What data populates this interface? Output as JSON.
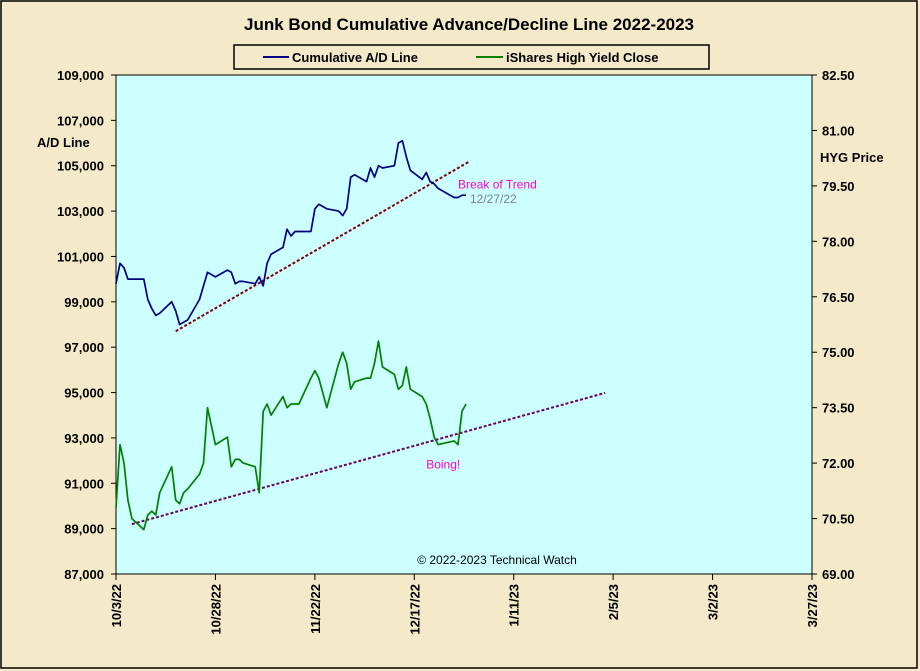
{
  "chart_data": {
    "type": "line",
    "title": "Junk Bond Cumulative  Advance/Decline Line 2022-2023",
    "y_left_label": "A/D Line",
    "y_right_label": "HYG Price",
    "copyright": "© 2022-2023  Technical  Watch",
    "colors": {
      "page_bg": "#F4E9C8",
      "plot_bg": "#CCFFFF",
      "ad_line": "#000080",
      "hyg_line": "#008000",
      "trend_line": "#800000",
      "trend_line_hyg": "#660066",
      "annotation_pink": "#FF00CC",
      "annotation_gray": "#808080"
    },
    "x_axis": {
      "start": "2022-10-03",
      "end": "2023-03-27",
      "tick_labels": [
        "10/3/22",
        "10/28/22",
        "11/22/22",
        "12/17/22",
        "1/11/23",
        "2/5/23",
        "3/2/23",
        "3/27/23"
      ],
      "tick_dates": [
        "2022-10-03",
        "2022-10-28",
        "2022-11-22",
        "2022-12-17",
        "2023-01-11",
        "2023-02-05",
        "2023-03-02",
        "2023-03-27"
      ]
    },
    "y_left": {
      "min": 87000,
      "max": 109000,
      "tick_values": [
        87000,
        89000,
        91000,
        93000,
        95000,
        97000,
        99000,
        101000,
        103000,
        105000,
        107000,
        109000
      ],
      "tick_labels": [
        "87,000",
        "89,000",
        "91,000",
        "93,000",
        "95,000",
        "97,000",
        "99,000",
        "101,000",
        "103,000",
        "105,000",
        "107,000",
        "109,000"
      ]
    },
    "y_right": {
      "min": 69.0,
      "max": 82.5,
      "tick_values": [
        69.0,
        70.5,
        72.0,
        73.5,
        75.0,
        76.5,
        78.0,
        79.5,
        81.0,
        82.5
      ],
      "tick_labels": [
        "69.00",
        "70.50",
        "72.00",
        "73.50",
        "75.00",
        "76.50",
        "78.00",
        "79.50",
        "81.00",
        "82.50"
      ]
    },
    "legend": {
      "position": "top-center",
      "items": [
        "Cumulative A/D Line",
        "iShares High Yield Close"
      ]
    },
    "series": [
      {
        "name": "Cumulative A/D Line",
        "axis": "left",
        "x": [
          "2022-10-03",
          "2022-10-04",
          "2022-10-05",
          "2022-10-06",
          "2022-10-07",
          "2022-10-10",
          "2022-10-11",
          "2022-10-12",
          "2022-10-13",
          "2022-10-14",
          "2022-10-17",
          "2022-10-18",
          "2022-10-19",
          "2022-10-20",
          "2022-10-21",
          "2022-10-24",
          "2022-10-25",
          "2022-10-26",
          "2022-10-27",
          "2022-10-28",
          "2022-10-31",
          "2022-11-01",
          "2022-11-02",
          "2022-11-03",
          "2022-11-04",
          "2022-11-07",
          "2022-11-08",
          "2022-11-09",
          "2022-11-10",
          "2022-11-11",
          "2022-11-14",
          "2022-11-15",
          "2022-11-16",
          "2022-11-17",
          "2022-11-18",
          "2022-11-21",
          "2022-11-22",
          "2022-11-23",
          "2022-11-25",
          "2022-11-28",
          "2022-11-29",
          "2022-11-30",
          "2022-12-01",
          "2022-12-02",
          "2022-12-05",
          "2022-12-06",
          "2022-12-07",
          "2022-12-08",
          "2022-12-09",
          "2022-12-12",
          "2022-12-13",
          "2022-12-14",
          "2022-12-15",
          "2022-12-16",
          "2022-12-19",
          "2022-12-20",
          "2022-12-21",
          "2022-12-22",
          "2022-12-23",
          "2022-12-27",
          "2022-12-28",
          "2022-12-29",
          "2022-12-30"
        ],
        "values": [
          99800,
          100700,
          100500,
          100000,
          100000,
          100000,
          99100,
          98700,
          98400,
          98500,
          99000,
          98600,
          98000,
          98100,
          98200,
          99100,
          99700,
          100300,
          100200,
          100100,
          100400,
          100300,
          99800,
          99900,
          99900,
          99800,
          100100,
          99700,
          100700,
          101100,
          101400,
          102200,
          101900,
          102100,
          102100,
          102100,
          103100,
          103300,
          103100,
          103000,
          102800,
          103100,
          104500,
          104600,
          104300,
          104900,
          104500,
          105000,
          104900,
          105000,
          106000,
          106100,
          105400,
          104800,
          104400,
          104700,
          104300,
          104200,
          104000,
          103600,
          103600,
          103700,
          103700
        ]
      },
      {
        "name": "iShares High Yield Close",
        "axis": "right",
        "x": [
          "2022-10-03",
          "2022-10-04",
          "2022-10-05",
          "2022-10-06",
          "2022-10-07",
          "2022-10-10",
          "2022-10-11",
          "2022-10-12",
          "2022-10-13",
          "2022-10-14",
          "2022-10-17",
          "2022-10-18",
          "2022-10-19",
          "2022-10-20",
          "2022-10-21",
          "2022-10-24",
          "2022-10-25",
          "2022-10-26",
          "2022-10-27",
          "2022-10-28",
          "2022-10-31",
          "2022-11-01",
          "2022-11-02",
          "2022-11-03",
          "2022-11-04",
          "2022-11-07",
          "2022-11-08",
          "2022-11-09",
          "2022-11-10",
          "2022-11-11",
          "2022-11-14",
          "2022-11-15",
          "2022-11-16",
          "2022-11-17",
          "2022-11-18",
          "2022-11-21",
          "2022-11-22",
          "2022-11-23",
          "2022-11-25",
          "2022-11-28",
          "2022-11-29",
          "2022-11-30",
          "2022-12-01",
          "2022-12-02",
          "2022-12-05",
          "2022-12-06",
          "2022-12-07",
          "2022-12-08",
          "2022-12-09",
          "2022-12-12",
          "2022-12-13",
          "2022-12-14",
          "2022-12-15",
          "2022-12-16",
          "2022-12-19",
          "2022-12-20",
          "2022-12-21",
          "2022-12-22",
          "2022-12-23",
          "2022-12-27",
          "2022-12-28",
          "2022-12-29",
          "2022-12-30"
        ],
        "values": [
          70.8,
          72.5,
          72.0,
          71.0,
          70.5,
          70.2,
          70.6,
          70.7,
          70.6,
          71.2,
          71.9,
          71.0,
          70.9,
          71.2,
          71.3,
          71.7,
          72.0,
          73.5,
          73.0,
          72.5,
          72.7,
          71.9,
          72.1,
          72.1,
          72.0,
          71.9,
          71.2,
          73.4,
          73.6,
          73.3,
          73.8,
          73.5,
          73.6,
          73.6,
          73.6,
          74.3,
          74.5,
          74.3,
          73.5,
          74.7,
          75.0,
          74.7,
          74.0,
          74.2,
          74.3,
          74.3,
          74.7,
          75.3,
          74.6,
          74.4,
          74.0,
          74.1,
          74.6,
          74.0,
          73.8,
          73.6,
          73.2,
          72.7,
          72.5,
          72.6,
          72.5,
          73.4,
          73.6
        ]
      }
    ],
    "trend_lines": [
      {
        "x": [
          "2022-10-18",
          "2022-12-31"
        ],
        "y": [
          97700,
          105200
        ],
        "axis": "left",
        "color_key": "trend_line"
      },
      {
        "x": [
          "2022-10-07",
          "2023-02-03"
        ],
        "y": [
          70.35,
          73.9
        ],
        "axis": "right",
        "color_key": "trend_line_hyg"
      }
    ],
    "annotations": [
      {
        "text": "Break of Trend",
        "x": "2022-12-28",
        "y": 104000,
        "axis": "left",
        "color_key": "annotation_pink"
      },
      {
        "text": "12/27/22",
        "x": "2022-12-31",
        "y": 103350,
        "axis": "left",
        "color_key": "annotation_gray"
      },
      {
        "text": "Boing!",
        "x": "2022-12-20",
        "y": 71.85,
        "axis": "right",
        "color_key": "annotation_pink"
      }
    ]
  }
}
